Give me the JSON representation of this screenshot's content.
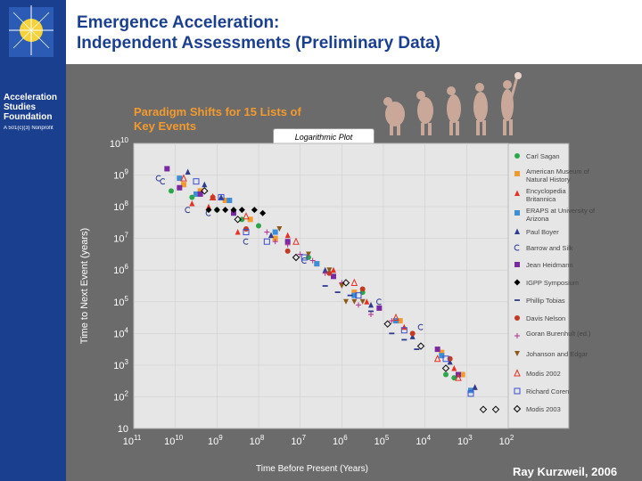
{
  "slide": {
    "title_line1": "Emergence Acceleration:",
    "title_line2": "Independent Assessments (Preliminary Data)",
    "org_name": "Acceleration\nStudies\nFoundation",
    "org_tagline": "A 501(c)(3) Nonprofit",
    "author": "Ray Kurzweil, 2006"
  },
  "colors": {
    "brand_blue": "#1b3f8f",
    "chart_title": "#f29a2e"
  },
  "chart_data": {
    "type": "scatter",
    "title": "Paradigm Shifts for 15 Lists of Key Events",
    "subtitle": "Logarithmic Plot",
    "xlabel": "Time Before Present (Years)",
    "ylabel": "Time to Next Event (years)",
    "xscale": "log-reversed",
    "yscale": "log",
    "xlim_exp": [
      11,
      2
    ],
    "ylim_exp": [
      1,
      10
    ],
    "x_ticks": [
      {
        "base": "10",
        "exp": "11"
      },
      {
        "base": "10",
        "exp": "10"
      },
      {
        "base": "10",
        "exp": "9"
      },
      {
        "base": "10",
        "exp": "8"
      },
      {
        "base": "10",
        "exp": "7"
      },
      {
        "base": "10",
        "exp": "6"
      },
      {
        "base": "10",
        "exp": "5"
      },
      {
        "base": "10",
        "exp": "4"
      },
      {
        "base": "10",
        "exp": "3"
      },
      {
        "base": "10",
        "exp": "2"
      }
    ],
    "y_ticks": [
      {
        "base": "10",
        "exp": "10"
      },
      {
        "base": "10",
        "exp": "9"
      },
      {
        "base": "10",
        "exp": "8"
      },
      {
        "base": "10",
        "exp": "7"
      },
      {
        "base": "10",
        "exp": "6"
      },
      {
        "base": "10",
        "exp": "5"
      },
      {
        "base": "10",
        "exp": "4"
      },
      {
        "base": "10",
        "exp": "3"
      },
      {
        "base": "10",
        "exp": "2"
      },
      {
        "base": "10",
        "exp": ""
      }
    ],
    "legend_position": "right",
    "series": [
      {
        "name": "Carl Sagan",
        "marker": "circle-filled",
        "color": "#2aa84a",
        "points": [
          [
            10.1,
            8.5
          ],
          [
            9.6,
            8.3
          ],
          [
            9.0,
            7.9
          ],
          [
            8.6,
            7.8
          ],
          [
            8.4,
            7.6
          ],
          [
            8.0,
            7.4
          ],
          [
            7.3,
            6.9
          ],
          [
            6.8,
            6.4
          ],
          [
            5.5,
            5.3
          ],
          [
            3.5,
            2.7
          ],
          [
            3.3,
            2.6
          ],
          [
            3.1,
            2.7
          ]
        ]
      },
      {
        "name": "American Museum of Natural History",
        "marker": "square-filled",
        "color": "#f29a2e",
        "points": [
          [
            9.8,
            8.7
          ],
          [
            9.4,
            8.5
          ],
          [
            8.8,
            8.2
          ],
          [
            8.2,
            7.6
          ],
          [
            7.6,
            7.0
          ],
          [
            6.6,
            6.2
          ],
          [
            5.7,
            5.3
          ],
          [
            4.6,
            4.4
          ],
          [
            3.6,
            3.4
          ],
          [
            3.1,
            2.7
          ]
        ]
      },
      {
        "name": "Encyclopedia Britannica",
        "marker": "triangle-filled",
        "color": "#e63223",
        "points": [
          [
            9.6,
            8.1
          ],
          [
            9.2,
            8.0
          ],
          [
            8.5,
            7.2
          ],
          [
            7.3,
            7.1
          ],
          [
            6.2,
            6.0
          ],
          [
            5.4,
            5.0
          ],
          [
            4.5,
            4.2
          ],
          [
            3.3,
            2.9
          ],
          [
            2.8,
            2.3
          ]
        ]
      },
      {
        "name": "ERAPS at University of Arizona",
        "marker": "square-filled",
        "color": "#3b8ed8",
        "points": [
          [
            9.9,
            8.9
          ],
          [
            9.5,
            8.4
          ],
          [
            8.7,
            8.2
          ],
          [
            7.6,
            7.2
          ],
          [
            6.6,
            6.2
          ],
          [
            5.7,
            5.2
          ],
          [
            4.7,
            4.4
          ],
          [
            3.6,
            3.3
          ],
          [
            2.9,
            2.2
          ]
        ]
      },
      {
        "name": "Paul Boyer",
        "marker": "triangle-filled",
        "color": "#2d3c8e",
        "points": [
          [
            9.7,
            9.1
          ],
          [
            9.3,
            8.7
          ],
          [
            8.9,
            8.3
          ],
          [
            7.7,
            7.1
          ],
          [
            6.4,
            6.0
          ],
          [
            5.3,
            4.9
          ],
          [
            4.3,
            3.9
          ],
          [
            3.4,
            3.1
          ],
          [
            2.8,
            2.3
          ]
        ]
      },
      {
        "name": "Barrow and Silk",
        "marker": "c-open",
        "color": "#2d3c8e",
        "points": [
          [
            10.4,
            8.9
          ],
          [
            10.3,
            8.8
          ],
          [
            9.7,
            7.9
          ],
          [
            9.2,
            7.8
          ],
          [
            8.3,
            6.9
          ],
          [
            6.9,
            6.3
          ],
          [
            5.1,
            5.0
          ],
          [
            4.1,
            4.2
          ]
        ]
      },
      {
        "name": "Jean Heidmann",
        "marker": "square-filled",
        "color": "#7a2aa0",
        "points": [
          [
            10.2,
            9.2
          ],
          [
            9.9,
            8.6
          ],
          [
            9.4,
            8.4
          ],
          [
            8.6,
            7.8
          ],
          [
            7.3,
            6.9
          ],
          [
            6.2,
            5.8
          ],
          [
            5.1,
            4.8
          ],
          [
            3.7,
            3.5
          ],
          [
            3.2,
            2.7
          ]
        ]
      },
      {
        "name": "IGPP Symposium",
        "marker": "diamond-filled",
        "color": "#000000",
        "points": [
          [
            9.2,
            7.9
          ],
          [
            9.0,
            7.9
          ],
          [
            8.8,
            7.9
          ],
          [
            8.6,
            7.9
          ],
          [
            8.4,
            7.9
          ],
          [
            8.1,
            7.9
          ],
          [
            7.9,
            7.8
          ]
        ]
      },
      {
        "name": "Phillip Tobias",
        "marker": "dash",
        "color": "#2d3c8e",
        "points": [
          [
            6.4,
            5.5
          ],
          [
            6.1,
            5.3
          ],
          [
            5.8,
            5.2
          ],
          [
            5.3,
            4.7
          ],
          [
            4.8,
            4.0
          ],
          [
            4.5,
            3.8
          ],
          [
            4.2,
            3.5
          ]
        ]
      },
      {
        "name": "Davis Nelson",
        "marker": "circle-filled",
        "color": "#c23b22",
        "points": [
          [
            9.1,
            8.3
          ],
          [
            8.3,
            7.3
          ],
          [
            7.3,
            6.6
          ],
          [
            6.3,
            5.9
          ],
          [
            5.5,
            5.4
          ],
          [
            4.3,
            4.0
          ],
          [
            3.4,
            3.2
          ]
        ]
      },
      {
        "name": "Goran Burenhult (ed.)",
        "marker": "plus",
        "color": "#b0308f",
        "points": [
          [
            7.8,
            7.2
          ],
          [
            7.6,
            6.9
          ],
          [
            7.3,
            6.8
          ],
          [
            7.0,
            6.5
          ],
          [
            6.7,
            6.3
          ],
          [
            6.4,
            5.9
          ],
          [
            6.0,
            5.6
          ],
          [
            5.6,
            4.9
          ],
          [
            5.3,
            4.6
          ],
          [
            4.8,
            4.4
          ]
        ]
      },
      {
        "name": "Johanson and Edgar",
        "marker": "triangle-down",
        "color": "#8a5a1e",
        "points": [
          [
            7.5,
            7.3
          ],
          [
            6.8,
            6.5
          ],
          [
            6.3,
            6.0
          ],
          [
            6.0,
            5.5
          ],
          [
            5.9,
            5.0
          ],
          [
            5.7,
            5.0
          ],
          [
            5.5,
            5.0
          ]
        ]
      },
      {
        "name": "Modis 2002",
        "marker": "triangle-open",
        "color": "#e63223",
        "points": [
          [
            9.8,
            8.9
          ],
          [
            9.1,
            8.3
          ],
          [
            8.3,
            7.7
          ],
          [
            7.1,
            6.9
          ],
          [
            5.7,
            5.6
          ],
          [
            4.7,
            4.5
          ],
          [
            3.7,
            3.2
          ],
          [
            3.2,
            2.6
          ]
        ]
      },
      {
        "name": "Richard Coren",
        "marker": "square-open",
        "color": "#3a4fd0",
        "points": [
          [
            9.5,
            8.8
          ],
          [
            8.9,
            8.3
          ],
          [
            8.3,
            7.2
          ],
          [
            7.8,
            6.9
          ],
          [
            6.9,
            6.4
          ],
          [
            5.6,
            5.2
          ],
          [
            4.5,
            4.1
          ],
          [
            3.5,
            3.2
          ],
          [
            2.9,
            2.1
          ]
        ]
      },
      {
        "name": "Modis 2003",
        "marker": "diamond-open",
        "color": "#000000",
        "points": [
          [
            9.3,
            8.5
          ],
          [
            8.5,
            7.6
          ],
          [
            7.1,
            6.4
          ],
          [
            5.9,
            5.6
          ],
          [
            4.9,
            4.3
          ],
          [
            4.1,
            3.6
          ],
          [
            3.5,
            2.9
          ],
          [
            2.6,
            1.6
          ],
          [
            2.3,
            1.6
          ]
        ]
      }
    ]
  }
}
